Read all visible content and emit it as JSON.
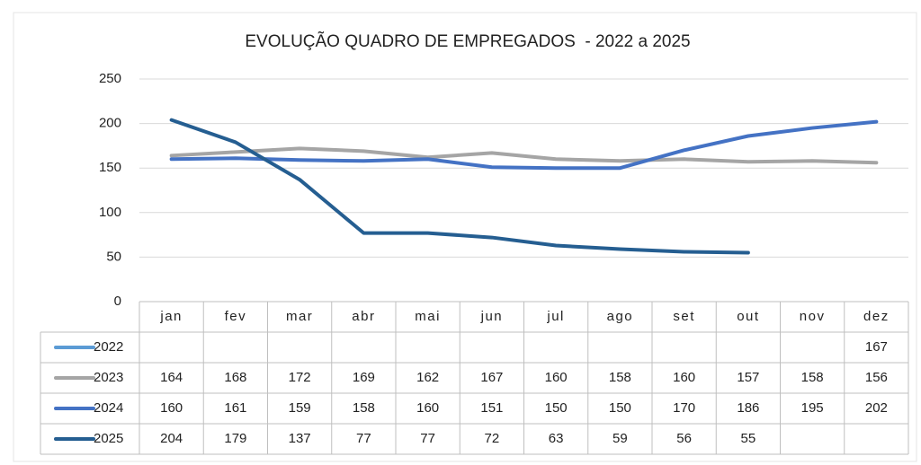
{
  "chart_data": {
    "type": "line",
    "title": "EVOLUÇÃO QUADRO DE EMPREGADOS  - 2022 a 2025",
    "categories": [
      "jan",
      "fev",
      "mar",
      "abr",
      "mai",
      "jun",
      "jul",
      "ago",
      "set",
      "out",
      "nov",
      "dez"
    ],
    "series": [
      {
        "name": "2022",
        "color": "#5b9bd5",
        "values": [
          null,
          null,
          null,
          null,
          null,
          null,
          null,
          null,
          null,
          null,
          null,
          167
        ]
      },
      {
        "name": "2023",
        "color": "#a5a5a5",
        "values": [
          164,
          168,
          172,
          169,
          162,
          167,
          160,
          158,
          160,
          157,
          158,
          156
        ]
      },
      {
        "name": "2024",
        "color": "#4472c4",
        "values": [
          160,
          161,
          159,
          158,
          160,
          151,
          150,
          150,
          170,
          186,
          195,
          202
        ]
      },
      {
        "name": "2025",
        "color": "#255e91",
        "values": [
          204,
          179,
          137,
          77,
          77,
          72,
          63,
          59,
          56,
          55,
          null,
          null
        ]
      }
    ],
    "ylim": [
      0,
      250
    ],
    "yticks": [
      0,
      50,
      100,
      150,
      200,
      250
    ],
    "grid": true
  }
}
